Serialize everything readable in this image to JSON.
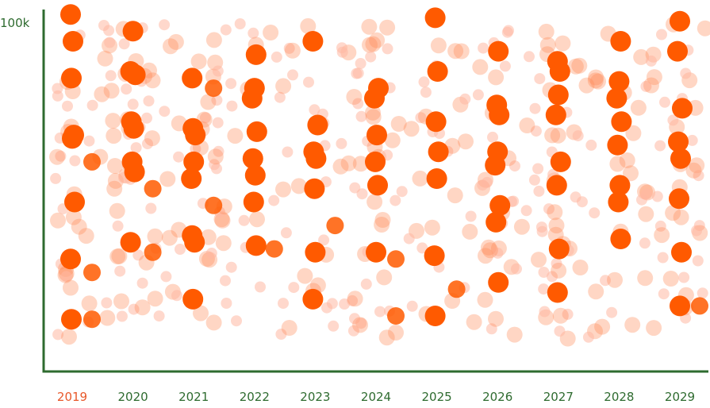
{
  "colors": {
    "axis": "#2e6b2f",
    "label": "#2e6b2f",
    "highlight_label": "#e8582a",
    "dot": "#ff5a00",
    "dot_faint": "#ffb8a3",
    "dot_mid": "#ff8a55"
  },
  "chart_data": {
    "type": "scatter",
    "title": "",
    "xlabel": "",
    "ylabel": "",
    "y_tick_label": "100k",
    "ylim": [
      0,
      100000
    ],
    "grid": false,
    "legend": "none",
    "categories": [
      "2019",
      "2020",
      "2021",
      "2022",
      "2023",
      "2024",
      "2025",
      "2026",
      "2027",
      "2028",
      "2029"
    ],
    "highlight_category": "2019",
    "points": [
      {
        "x": "2019",
        "y": 99000,
        "size": "large"
      },
      {
        "x": "2019",
        "y": 91000,
        "size": "large"
      },
      {
        "x": "2019",
        "y": 80000,
        "size": "large"
      },
      {
        "x": "2019",
        "y": 63000,
        "size": "large"
      },
      {
        "x": "2019",
        "y": 62000,
        "size": "large"
      },
      {
        "x": "2019",
        "y": 55000,
        "size": "small"
      },
      {
        "x": "2019",
        "y": 43000,
        "size": "large"
      },
      {
        "x": "2019",
        "y": 26000,
        "size": "large"
      },
      {
        "x": "2019",
        "y": 22000,
        "size": "small"
      },
      {
        "x": "2019",
        "y": 8000,
        "size": "large"
      },
      {
        "x": "2019",
        "y": 8000,
        "size": "small"
      },
      {
        "x": "2020",
        "y": 94000,
        "size": "large"
      },
      {
        "x": "2020",
        "y": 82000,
        "size": "large"
      },
      {
        "x": "2020",
        "y": 81000,
        "size": "large"
      },
      {
        "x": "2020",
        "y": 67000,
        "size": "large"
      },
      {
        "x": "2020",
        "y": 65000,
        "size": "large"
      },
      {
        "x": "2020",
        "y": 55000,
        "size": "large"
      },
      {
        "x": "2020",
        "y": 52000,
        "size": "large"
      },
      {
        "x": "2020",
        "y": 47000,
        "size": "small"
      },
      {
        "x": "2020",
        "y": 31000,
        "size": "large"
      },
      {
        "x": "2020",
        "y": 28000,
        "size": "small"
      },
      {
        "x": "2021",
        "y": 80000,
        "size": "large"
      },
      {
        "x": "2021",
        "y": 77000,
        "size": "small"
      },
      {
        "x": "2021",
        "y": 65000,
        "size": "large"
      },
      {
        "x": "2021",
        "y": 63000,
        "size": "large"
      },
      {
        "x": "2021",
        "y": 55000,
        "size": "large"
      },
      {
        "x": "2021",
        "y": 50000,
        "size": "large"
      },
      {
        "x": "2021",
        "y": 42000,
        "size": "small"
      },
      {
        "x": "2021",
        "y": 33000,
        "size": "large"
      },
      {
        "x": "2021",
        "y": 31000,
        "size": "large"
      },
      {
        "x": "2021",
        "y": 14000,
        "size": "large"
      },
      {
        "x": "2022",
        "y": 87000,
        "size": "large"
      },
      {
        "x": "2022",
        "y": 77000,
        "size": "large"
      },
      {
        "x": "2022",
        "y": 74000,
        "size": "large"
      },
      {
        "x": "2022",
        "y": 64000,
        "size": "large"
      },
      {
        "x": "2022",
        "y": 56000,
        "size": "large"
      },
      {
        "x": "2022",
        "y": 51000,
        "size": "large"
      },
      {
        "x": "2022",
        "y": 43000,
        "size": "large"
      },
      {
        "x": "2022",
        "y": 30000,
        "size": "large"
      },
      {
        "x": "2022",
        "y": 29000,
        "size": "small"
      },
      {
        "x": "2023",
        "y": 91000,
        "size": "large"
      },
      {
        "x": "2023",
        "y": 66000,
        "size": "large"
      },
      {
        "x": "2023",
        "y": 58000,
        "size": "large"
      },
      {
        "x": "2023",
        "y": 56000,
        "size": "large"
      },
      {
        "x": "2023",
        "y": 47000,
        "size": "large"
      },
      {
        "x": "2023",
        "y": 36000,
        "size": "small"
      },
      {
        "x": "2023",
        "y": 28000,
        "size": "large"
      },
      {
        "x": "2023",
        "y": 14000,
        "size": "large"
      },
      {
        "x": "2024",
        "y": 77000,
        "size": "large"
      },
      {
        "x": "2024",
        "y": 74000,
        "size": "large"
      },
      {
        "x": "2024",
        "y": 63000,
        "size": "large"
      },
      {
        "x": "2024",
        "y": 55000,
        "size": "large"
      },
      {
        "x": "2024",
        "y": 48000,
        "size": "large"
      },
      {
        "x": "2024",
        "y": 28000,
        "size": "large"
      },
      {
        "x": "2024",
        "y": 26000,
        "size": "small"
      },
      {
        "x": "2024",
        "y": 9000,
        "size": "small"
      },
      {
        "x": "2025",
        "y": 98000,
        "size": "large"
      },
      {
        "x": "2025",
        "y": 82000,
        "size": "large"
      },
      {
        "x": "2025",
        "y": 67000,
        "size": "large"
      },
      {
        "x": "2025",
        "y": 58000,
        "size": "large"
      },
      {
        "x": "2025",
        "y": 50000,
        "size": "large"
      },
      {
        "x": "2025",
        "y": 27000,
        "size": "large"
      },
      {
        "x": "2025",
        "y": 17000,
        "size": "small"
      },
      {
        "x": "2025",
        "y": 9000,
        "size": "large"
      },
      {
        "x": "2026",
        "y": 88000,
        "size": "large"
      },
      {
        "x": "2026",
        "y": 72000,
        "size": "large"
      },
      {
        "x": "2026",
        "y": 69000,
        "size": "large"
      },
      {
        "x": "2026",
        "y": 58000,
        "size": "large"
      },
      {
        "x": "2026",
        "y": 54000,
        "size": "large"
      },
      {
        "x": "2026",
        "y": 42000,
        "size": "large"
      },
      {
        "x": "2026",
        "y": 37000,
        "size": "large"
      },
      {
        "x": "2026",
        "y": 19000,
        "size": "large"
      },
      {
        "x": "2027",
        "y": 85000,
        "size": "large"
      },
      {
        "x": "2027",
        "y": 82000,
        "size": "large"
      },
      {
        "x": "2027",
        "y": 75000,
        "size": "large"
      },
      {
        "x": "2027",
        "y": 69000,
        "size": "large"
      },
      {
        "x": "2027",
        "y": 55000,
        "size": "large"
      },
      {
        "x": "2027",
        "y": 48000,
        "size": "large"
      },
      {
        "x": "2027",
        "y": 29000,
        "size": "large"
      },
      {
        "x": "2027",
        "y": 16000,
        "size": "large"
      },
      {
        "x": "2028",
        "y": 91000,
        "size": "large"
      },
      {
        "x": "2028",
        "y": 79000,
        "size": "large"
      },
      {
        "x": "2028",
        "y": 74000,
        "size": "large"
      },
      {
        "x": "2028",
        "y": 67000,
        "size": "large"
      },
      {
        "x": "2028",
        "y": 60000,
        "size": "large"
      },
      {
        "x": "2028",
        "y": 48000,
        "size": "large"
      },
      {
        "x": "2028",
        "y": 43000,
        "size": "large"
      },
      {
        "x": "2028",
        "y": 32000,
        "size": "large"
      },
      {
        "x": "2029",
        "y": 97000,
        "size": "large"
      },
      {
        "x": "2029",
        "y": 88000,
        "size": "large"
      },
      {
        "x": "2029",
        "y": 71000,
        "size": "large"
      },
      {
        "x": "2029",
        "y": 61000,
        "size": "large"
      },
      {
        "x": "2029",
        "y": 56000,
        "size": "large"
      },
      {
        "x": "2029",
        "y": 44000,
        "size": "large"
      },
      {
        "x": "2029",
        "y": 28000,
        "size": "large"
      },
      {
        "x": "2029",
        "y": 12000,
        "size": "large"
      },
      {
        "x": "2029",
        "y": 12000,
        "size": "small"
      }
    ]
  }
}
